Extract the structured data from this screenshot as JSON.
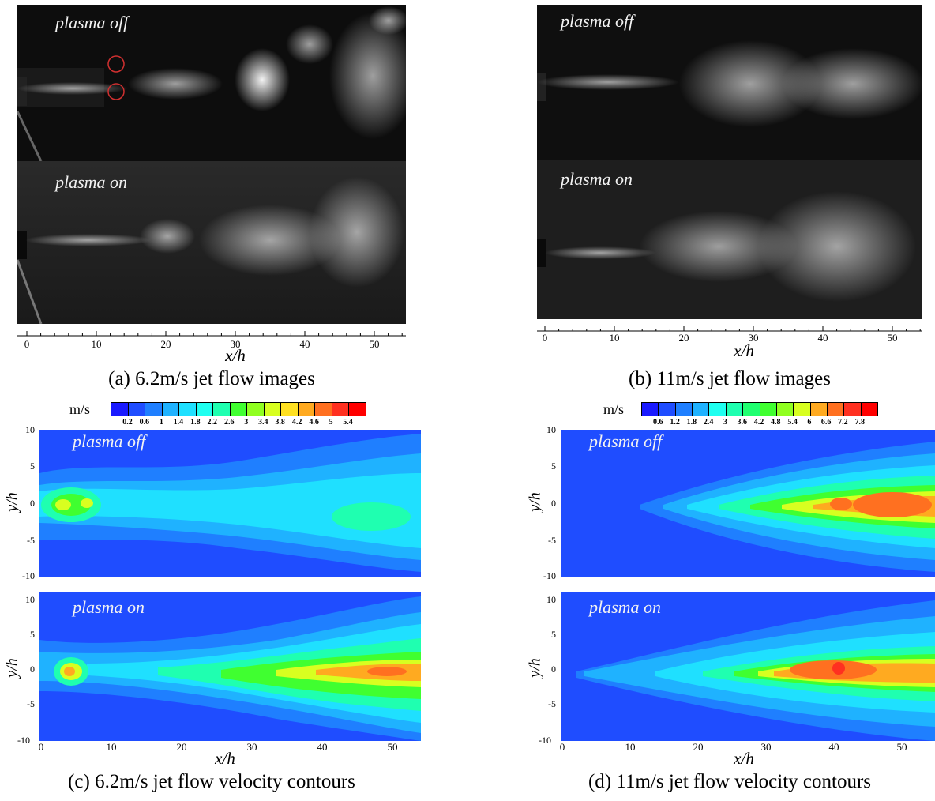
{
  "panels": {
    "a": {
      "caption": "(a) 6.2m/s jet flow images",
      "top_label": "plasma off",
      "bottom_label": "plasma on",
      "x_title": "x/h",
      "x_ticks": [
        "0",
        "10",
        "20",
        "30",
        "40",
        "50"
      ]
    },
    "b": {
      "caption": "(b) 11m/s jet flow images",
      "top_label": "plasma off",
      "bottom_label": "plasma on",
      "x_title": "x/h",
      "x_ticks": [
        "0",
        "10",
        "20",
        "30",
        "40",
        "50"
      ]
    },
    "c": {
      "caption": "(c) 6.2m/s jet flow velocity contours",
      "unit": "m/s",
      "colorbar_labels": [
        "0.2",
        "0.6",
        "1",
        "1.4",
        "1.8",
        "2.2",
        "2.6",
        "3",
        "3.4",
        "3.8",
        "4.2",
        "4.6",
        "5",
        "5.4"
      ],
      "top_label": "plasma off",
      "bottom_label": "plasma on",
      "y_title": "y/h",
      "y_ticks_top": [
        "10",
        "5",
        "0",
        "-5",
        "-10"
      ],
      "y_ticks_bottom": [
        "10",
        "5",
        "0",
        "-5",
        "-10"
      ],
      "x_title": "x/h",
      "x_ticks": [
        "0",
        "10",
        "20",
        "30",
        "40",
        "50"
      ]
    },
    "d": {
      "caption": "(d) 11m/s jet flow velocity contours",
      "unit": "m/s",
      "colorbar_labels": [
        "0.6",
        "1.2",
        "1.8",
        "2.4",
        "3",
        "3.6",
        "4.2",
        "4.8",
        "5.4",
        "6",
        "6.6",
        "7.2",
        "7.8"
      ],
      "top_label": "plasma off",
      "bottom_label": "plasma on",
      "y_title": "y/h",
      "y_ticks_top": [
        "10",
        "5",
        "0",
        "-5",
        "-10"
      ],
      "y_ticks_bottom": [
        "10",
        "5",
        "0",
        "-5",
        "-10"
      ],
      "x_title": "x/h",
      "x_ticks": [
        "0",
        "10",
        "20",
        "30",
        "40",
        "50"
      ]
    }
  },
  "colormap": [
    "#1a1aff",
    "#1f4dff",
    "#1f7fff",
    "#1fb2ff",
    "#1fe0ff",
    "#1ffff0",
    "#1fffb0",
    "#1fff70",
    "#40ff30",
    "#90ff20",
    "#d8ff20",
    "#ffe020",
    "#ffaa20",
    "#ff7020",
    "#ff3020",
    "#ff0000"
  ]
}
